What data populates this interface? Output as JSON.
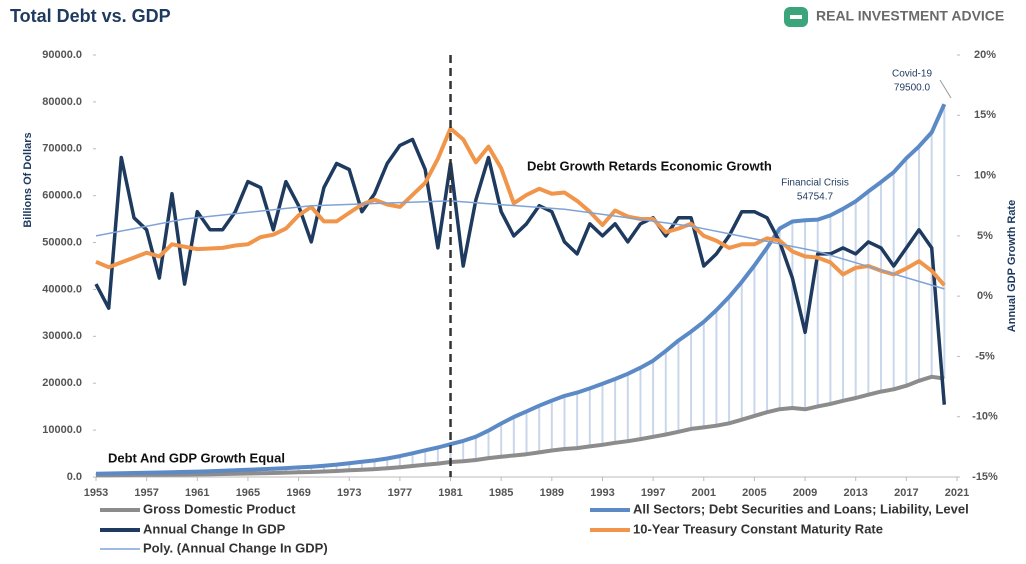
{
  "chart_data": {
    "type": "line",
    "title": "Total Debt vs. GDP",
    "brand": "REAL INVESTMENT ADVICE",
    "ylabel": "Billions Of Dollars",
    "y2label": "Annual GDP Growth Rate",
    "xlim": [
      1953,
      2021
    ],
    "xticks": [
      1953,
      1957,
      1961,
      1965,
      1969,
      1973,
      1977,
      1981,
      1985,
      1989,
      1993,
      1997,
      2001,
      2005,
      2009,
      2013,
      2017,
      2021
    ],
    "ylim": [
      0,
      90000
    ],
    "yticks": [
      {
        "value": 0,
        "label": "0.0"
      },
      {
        "value": 10000,
        "label": "10000.0"
      },
      {
        "value": 20000,
        "label": "20000.0"
      },
      {
        "value": 30000,
        "label": "30000.0"
      },
      {
        "value": 40000,
        "label": "40000.0"
      },
      {
        "value": 50000,
        "label": "50000.0"
      },
      {
        "value": 60000,
        "label": "60000.0"
      },
      {
        "value": 70000,
        "label": "70000.0"
      },
      {
        "value": 80000,
        "label": "80000.0"
      },
      {
        "value": 90000,
        "label": "90000.0"
      }
    ],
    "y2lim": [
      -15,
      20
    ],
    "y2ticks": [
      {
        "value": -15,
        "label": "-15%"
      },
      {
        "value": -10,
        "label": "-10%"
      },
      {
        "value": -5,
        "label": "-5%"
      },
      {
        "value": 0,
        "label": "0%"
      },
      {
        "value": 5,
        "label": "5%"
      },
      {
        "value": 10,
        "label": "10%"
      },
      {
        "value": 15,
        "label": "15%"
      },
      {
        "value": 20,
        "label": "20%"
      }
    ],
    "vline": 1981,
    "annotations": [
      "Debt Growth Retards Economic Growth",
      "Debt And GDP Growth Equal",
      "Financial Crisis",
      "Covid-19"
    ],
    "x": [
      1953,
      1954,
      1955,
      1956,
      1957,
      1958,
      1959,
      1960,
      1961,
      1962,
      1963,
      1964,
      1965,
      1966,
      1967,
      1968,
      1969,
      1970,
      1971,
      1972,
      1973,
      1974,
      1975,
      1976,
      1977,
      1978,
      1979,
      1980,
      1981,
      1982,
      1983,
      1984,
      1985,
      1986,
      1987,
      1988,
      1989,
      1990,
      1991,
      1992,
      1993,
      1994,
      1995,
      1996,
      1997,
      1998,
      1999,
      2000,
      2001,
      2002,
      2003,
      2004,
      2005,
      2006,
      2007,
      2008,
      2009,
      2010,
      2011,
      2012,
      2013,
      2014,
      2015,
      2016,
      2017,
      2018,
      2019,
      2020
    ],
    "series": [
      {
        "name": "Gross Domestic Product",
        "color": "#8c8c8c",
        "values": [
          389,
          391,
          426,
          450,
          474,
          481,
          522,
          543,
          563,
          605,
          638,
          686,
          744,
          815,
          862,
          943,
          1019,
          1073,
          1165,
          1280,
          1425,
          1545,
          1684,
          1873,
          2082,
          2352,
          2627,
          2857,
          3207,
          3343,
          3634,
          4037,
          4339,
          4580,
          4855,
          5236,
          5642,
          5963,
          6158,
          6520,
          6859,
          7287,
          7640,
          8073,
          8578,
          9063,
          9631,
          10252,
          10582,
          10936,
          11458,
          12214,
          13037,
          13815,
          14452,
          14713,
          14449,
          15049,
          15600,
          16254,
          16843,
          17551,
          18206,
          18695,
          19480,
          20527,
          21373,
          21000
        ]
      },
      {
        "name": "All Sectors; Debt Securities and Loans; Liability, Level",
        "color": "#5b8ac6",
        "values": [
          700,
          750,
          800,
          850,
          900,
          960,
          1030,
          1090,
          1160,
          1240,
          1330,
          1420,
          1530,
          1640,
          1760,
          1900,
          2050,
          2200,
          2400,
          2650,
          2950,
          3250,
          3550,
          3950,
          4450,
          5050,
          5700,
          6300,
          7000,
          7700,
          8600,
          9900,
          11400,
          12800,
          14000,
          15200,
          16300,
          17300,
          18000,
          18900,
          19900,
          20900,
          22000,
          23300,
          24800,
          26900,
          29100,
          31000,
          33100,
          35600,
          38400,
          41600,
          45100,
          48900,
          53000,
          54500,
          54754.7,
          54900,
          55800,
          57200,
          58800,
          60900,
          62900,
          65000,
          68000,
          70500,
          73500,
          79500
        ],
        "value_labels": [
          null,
          null,
          null,
          null,
          null,
          null,
          null,
          null,
          null,
          null,
          null,
          null,
          null,
          null,
          null,
          null,
          null,
          null,
          null,
          null,
          null,
          null,
          null,
          null,
          null,
          null,
          null,
          null,
          null,
          null,
          null,
          null,
          null,
          null,
          null,
          null,
          null,
          null,
          null,
          null,
          null,
          null,
          null,
          null,
          null,
          null,
          null,
          null,
          null,
          null,
          null,
          null,
          null,
          null,
          null,
          null,
          "54754.7",
          null,
          null,
          null,
          null,
          null,
          null,
          null,
          null,
          null,
          null,
          "79500.0"
        ]
      },
      {
        "name": "Annual Change In GDP",
        "color": "#1f3a5f",
        "axis": "y2",
        "values": [
          1.0,
          -1.0,
          11.5,
          6.5,
          5.5,
          1.5,
          8.5,
          1.0,
          7.0,
          5.5,
          5.5,
          7.0,
          9.5,
          9.0,
          5.5,
          9.5,
          7.5,
          4.5,
          9.0,
          11.0,
          10.5,
          7.0,
          8.5,
          11.0,
          12.5,
          13.0,
          10.5,
          4.0,
          11.0,
          2.5,
          8.0,
          11.5,
          7.0,
          5.0,
          6.0,
          7.5,
          7.0,
          4.5,
          3.5,
          6.0,
          5.0,
          6.0,
          4.5,
          6.0,
          6.5,
          5.0,
          6.5,
          6.5,
          2.5,
          3.5,
          5.0,
          7.0,
          7.0,
          6.5,
          4.5,
          1.5,
          -3.0,
          3.5,
          3.5,
          4.0,
          3.5,
          4.5,
          4.0,
          2.5,
          4.0,
          5.5,
          4.0,
          -9.0
        ]
      },
      {
        "name": "10-Year Treasury Constant Maturity Rate",
        "color": "#f0954a",
        "axis": "y2",
        "values": [
          2.85,
          2.4,
          2.8,
          3.2,
          3.6,
          3.3,
          4.3,
          4.1,
          3.9,
          3.95,
          4.0,
          4.2,
          4.3,
          4.9,
          5.1,
          5.6,
          6.7,
          7.4,
          6.2,
          6.2,
          6.9,
          7.6,
          8.0,
          7.6,
          7.4,
          8.4,
          9.4,
          11.4,
          13.9,
          13.0,
          11.1,
          12.4,
          10.6,
          7.7,
          8.4,
          8.9,
          8.5,
          8.6,
          7.9,
          7.0,
          5.9,
          7.1,
          6.6,
          6.4,
          6.4,
          5.3,
          5.6,
          6.0,
          5.0,
          4.6,
          4.0,
          4.3,
          4.3,
          4.8,
          4.6,
          3.7,
          3.3,
          3.2,
          2.8,
          1.8,
          2.35,
          2.5,
          2.1,
          1.8,
          2.3,
          2.9,
          2.1,
          0.9
        ]
      },
      {
        "name": "Poly. (Annual Change In GDP)",
        "color": "#7fa3d6",
        "axis": "y2",
        "x": [
          1953,
          1960,
          1970,
          1981,
          1990,
          2000,
          2010,
          2020
        ],
        "values": [
          5.0,
          6.4,
          7.5,
          7.9,
          7.2,
          5.8,
          3.7,
          0.6
        ]
      }
    ]
  }
}
